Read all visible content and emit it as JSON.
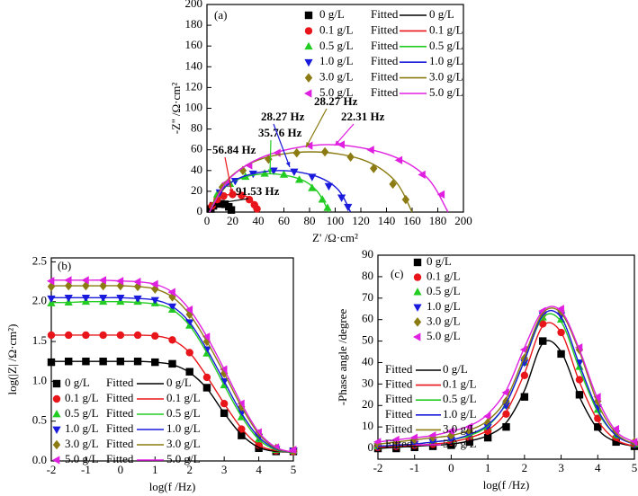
{
  "chart_data": [
    {
      "type": "scatter",
      "panel_label": "(a)",
      "xlabel": "Z' /Ω·cm²",
      "ylabel": "-Z'' /Ω·cm²",
      "fitted_label": "Fitted",
      "xlim": [
        0,
        200
      ],
      "ylim": [
        0,
        200
      ],
      "xticks": [
        0,
        20,
        40,
        60,
        80,
        100,
        120,
        140,
        160,
        180,
        200
      ],
      "yticks": [
        0,
        20,
        40,
        60,
        80,
        100,
        120,
        140,
        160,
        180,
        200
      ],
      "annotations": [
        {
          "text": "91.53 Hz",
          "color": "#000000"
        },
        {
          "text": "56.84 Hz",
          "color": "#e8161b"
        },
        {
          "text": "35.76 Hz",
          "color": "#22cc22"
        },
        {
          "text": "28.27 Hz",
          "color": "#1a1adc"
        },
        {
          "text": "28.27 Hz",
          "color": "#8b7b12"
        },
        {
          "text": "22.31 Hz",
          "color": "#e020e0"
        }
      ],
      "series": [
        {
          "name": "0 g/L",
          "mode": "markers",
          "marker": "square",
          "color": "#000000",
          "x": [
            3,
            5,
            8,
            11,
            14,
            17,
            19
          ],
          "values": [
            3,
            6,
            7.8,
            8,
            7.5,
            5,
            2
          ]
        },
        {
          "name": "0.1 g/L",
          "mode": "markers",
          "marker": "circle",
          "color": "#e8161b",
          "x": [
            4,
            8,
            13,
            20,
            27,
            33,
            37,
            39
          ],
          "values": [
            6,
            12,
            15.5,
            17,
            16,
            12,
            7,
            3
          ]
        },
        {
          "name": "0.5 g/L",
          "mode": "markers",
          "marker": "triangle-up",
          "color": "#22cc22",
          "x": [
            8,
            18,
            30,
            45,
            60,
            72,
            82,
            90,
            94
          ],
          "values": [
            17,
            27,
            34,
            37,
            36,
            31,
            23,
            12,
            4
          ]
        },
        {
          "name": "1.0 g/L",
          "mode": "markers",
          "marker": "triangle-down",
          "color": "#1a1adc",
          "x": [
            10,
            22,
            36,
            52,
            68,
            82,
            95,
            105,
            110
          ],
          "values": [
            19,
            30,
            37,
            40,
            39,
            34,
            25,
            14,
            5
          ]
        },
        {
          "name": "3.0 g/L",
          "mode": "markers",
          "marker": "diamond",
          "color": "#8b7b12",
          "x": [
            12,
            28,
            48,
            70,
            92,
            112,
            130,
            145,
            155
          ],
          "values": [
            24,
            40,
            51,
            57,
            58,
            53,
            42,
            27,
            12
          ]
        },
        {
          "name": "5.0 g/L",
          "mode": "markers",
          "marker": "triangle-left",
          "color": "#e020e0",
          "x": [
            15,
            33,
            55,
            80,
            105,
            128,
            150,
            168,
            183
          ],
          "values": [
            28,
            45,
            57,
            64,
            65,
            60,
            50,
            36,
            17
          ]
        },
        {
          "name": "0 g/L",
          "mode": "line",
          "color": "#000000",
          "x": [
            2,
            4,
            7,
            11,
            15,
            18,
            20
          ],
          "values": [
            0,
            4.5,
            7.3,
            8,
            7,
            4,
            0
          ]
        },
        {
          "name": "0.1 g/L",
          "mode": "line",
          "color": "#e8161b",
          "x": [
            2,
            6,
            12,
            21,
            30,
            36,
            40
          ],
          "values": [
            0,
            10,
            15.5,
            17,
            15.5,
            10,
            0
          ]
        },
        {
          "name": "0.5 g/L",
          "mode": "line",
          "color": "#22cc22",
          "x": [
            2,
            10,
            25,
            48,
            72,
            86,
            95
          ],
          "values": [
            0,
            20,
            32,
            37,
            32,
            20,
            0
          ]
        },
        {
          "name": "1.0 g/L",
          "mode": "line",
          "color": "#1a1adc",
          "x": [
            2,
            12,
            30,
            57,
            84,
            102,
            112
          ],
          "values": [
            0,
            22,
            35,
            40,
            35,
            22,
            0
          ]
        },
        {
          "name": "3.0 g/L",
          "mode": "line",
          "color": "#8b7b12",
          "x": [
            2,
            16,
            42,
            81,
            120,
            146,
            160
          ],
          "values": [
            0,
            31,
            51,
            58,
            51,
            31,
            0
          ]
        },
        {
          "name": "5.0 g/L",
          "mode": "line",
          "color": "#e020e0",
          "x": [
            2,
            19,
            50,
            95,
            140,
            171,
            188
          ],
          "values": [
            0,
            34,
            56,
            65,
            56,
            34,
            0
          ]
        }
      ]
    },
    {
      "type": "scatter",
      "panel_label": "(b)",
      "xlabel": "log(f /Hz)",
      "ylabel": "log(|Z| /Ω·cm²)",
      "fitted_label": "Fitted",
      "xlim": [
        -2,
        5
      ],
      "ylim": [
        0,
        2.55
      ],
      "xticks": [
        -2,
        -1,
        0,
        1,
        2,
        3,
        4,
        5
      ],
      "yticks": [
        {
          "value": 0,
          "label": "0.0"
        },
        0.5,
        {
          "value": 1,
          "label": "1.0"
        },
        1.5,
        {
          "value": 2,
          "label": "2.0"
        },
        2.5
      ],
      "x": [
        -2,
        -1.5,
        -1,
        -0.5,
        0,
        0.5,
        1,
        1.5,
        2,
        2.5,
        3,
        3.5,
        4,
        4.5,
        5
      ],
      "series": [
        {
          "name": "0 g/L",
          "mode": "markers",
          "marker": "square",
          "color": "#000000",
          "values": [
            1.24,
            1.25,
            1.25,
            1.25,
            1.25,
            1.25,
            1.24,
            1.22,
            1.12,
            0.92,
            0.6,
            0.32,
            0.16,
            0.12,
            0.12
          ]
        },
        {
          "name": "0.1 g/L",
          "mode": "markers",
          "marker": "circle",
          "color": "#e8161b",
          "values": [
            1.58,
            1.58,
            1.58,
            1.58,
            1.58,
            1.58,
            1.57,
            1.52,
            1.36,
            1.05,
            0.72,
            0.4,
            0.2,
            0.13,
            0.12
          ]
        },
        {
          "name": "0.5 g/L",
          "mode": "markers",
          "marker": "triangle-up",
          "color": "#22cc22",
          "values": [
            1.98,
            1.99,
            2.0,
            2.0,
            2.0,
            2.0,
            1.98,
            1.9,
            1.7,
            1.35,
            0.95,
            0.55,
            0.27,
            0.14,
            0.13
          ]
        },
        {
          "name": "1.0 g/L",
          "mode": "markers",
          "marker": "triangle-down",
          "color": "#1a1adc",
          "values": [
            2.04,
            2.05,
            2.05,
            2.05,
            2.05,
            2.04,
            2.02,
            1.94,
            1.74,
            1.4,
            1.0,
            0.6,
            0.3,
            0.15,
            0.13
          ]
        },
        {
          "name": "3.0 g/L",
          "mode": "markers",
          "marker": "diamond",
          "color": "#8b7b12",
          "values": [
            2.19,
            2.2,
            2.2,
            2.2,
            2.2,
            2.19,
            2.16,
            2.06,
            1.84,
            1.5,
            1.1,
            0.68,
            0.34,
            0.16,
            0.13
          ]
        },
        {
          "name": "5.0 g/L",
          "mode": "markers",
          "marker": "triangle-left",
          "color": "#e020e0",
          "values": [
            2.26,
            2.27,
            2.27,
            2.27,
            2.26,
            2.25,
            2.22,
            2.12,
            1.9,
            1.56,
            1.15,
            0.72,
            0.36,
            0.17,
            0.14
          ]
        },
        {
          "name": "0 g/L",
          "mode": "line",
          "color": "#000000",
          "values": [
            1.25,
            1.25,
            1.25,
            1.25,
            1.25,
            1.25,
            1.24,
            1.21,
            1.11,
            0.91,
            0.6,
            0.33,
            0.17,
            0.12,
            0.11
          ]
        },
        {
          "name": "0.1 g/L",
          "mode": "line",
          "color": "#e8161b",
          "values": [
            1.58,
            1.58,
            1.58,
            1.58,
            1.58,
            1.58,
            1.57,
            1.52,
            1.36,
            1.06,
            0.72,
            0.41,
            0.2,
            0.13,
            0.11
          ]
        },
        {
          "name": "0.5 g/L",
          "mode": "line",
          "color": "#22cc22",
          "values": [
            1.99,
            1.99,
            2.0,
            2.0,
            2.0,
            1.99,
            1.97,
            1.9,
            1.7,
            1.36,
            0.95,
            0.56,
            0.27,
            0.14,
            0.11
          ]
        },
        {
          "name": "1.0 g/L",
          "mode": "line",
          "color": "#1a1adc",
          "values": [
            2.05,
            2.05,
            2.05,
            2.05,
            2.05,
            2.04,
            2.02,
            1.94,
            1.74,
            1.4,
            1.0,
            0.6,
            0.3,
            0.15,
            0.11
          ]
        },
        {
          "name": "3.0 g/L",
          "mode": "line",
          "color": "#8b7b12",
          "values": [
            2.2,
            2.2,
            2.2,
            2.2,
            2.2,
            2.19,
            2.16,
            2.06,
            1.84,
            1.5,
            1.1,
            0.68,
            0.34,
            0.16,
            0.11
          ]
        },
        {
          "name": "5.0 g/L",
          "mode": "line",
          "color": "#e020e0",
          "values": [
            2.27,
            2.27,
            2.27,
            2.27,
            2.26,
            2.25,
            2.22,
            2.12,
            1.9,
            1.56,
            1.15,
            0.72,
            0.36,
            0.17,
            0.11
          ]
        }
      ]
    },
    {
      "type": "scatter",
      "panel_label": "(c)",
      "xlabel": "log(f /Hz)",
      "ylabel": "-Phase angle /degree",
      "fitted_label": "Fitted",
      "xlim": [
        -2,
        5
      ],
      "ylim": [
        -5,
        90
      ],
      "xticks": [
        -2,
        -1,
        0,
        1,
        2,
        3,
        4,
        5
      ],
      "yticks": [
        0,
        10,
        20,
        30,
        40,
        50,
        60,
        70,
        80,
        90
      ],
      "x": [
        -2,
        -1.5,
        -1,
        -0.5,
        0,
        0.5,
        1,
        1.5,
        2,
        2.5,
        3,
        3.5,
        4,
        4.5,
        5
      ],
      "series": [
        {
          "name": "0 g/L",
          "mode": "markers",
          "marker": "square",
          "color": "#000000",
          "values": [
            0,
            0,
            0.5,
            1,
            1.5,
            3,
            5,
            10,
            24,
            50,
            44,
            25,
            10,
            3,
            1
          ]
        },
        {
          "name": "0.1 g/L",
          "mode": "markers",
          "marker": "circle",
          "color": "#e8161b",
          "values": [
            0.5,
            1,
            1.5,
            2,
            3,
            5,
            8,
            16,
            34,
            58,
            54,
            32,
            14,
            5,
            2
          ]
        },
        {
          "name": "0.5 g/L",
          "mode": "markers",
          "marker": "triangle-up",
          "color": "#22cc22",
          "values": [
            1,
            1.5,
            2,
            3,
            4,
            6,
            10,
            20,
            40,
            61,
            60,
            38,
            18,
            6,
            2
          ]
        },
        {
          "name": "1.0 g/L",
          "mode": "markers",
          "marker": "triangle-down",
          "color": "#1a1adc",
          "values": [
            1,
            1.5,
            2,
            3,
            4,
            6,
            10,
            20,
            40,
            62,
            62,
            40,
            19,
            7,
            2
          ]
        },
        {
          "name": "3.0 g/L",
          "mode": "markers",
          "marker": "diamond",
          "color": "#8b7b12",
          "values": [
            2,
            3,
            4,
            5,
            6,
            8,
            12,
            22,
            42,
            62,
            64,
            46,
            22,
            8,
            3
          ]
        },
        {
          "name": "5.0 g/L",
          "mode": "markers",
          "marker": "triangle-left",
          "color": "#e020e0",
          "values": [
            3,
            4,
            5,
            6,
            8,
            10,
            15,
            26,
            46,
            64,
            65,
            47,
            24,
            9,
            3
          ]
        },
        {
          "name": "0 g/L",
          "mode": "line",
          "color": "#000000",
          "values": [
            0,
            0.5,
            1,
            1.5,
            2,
            3.5,
            6,
            12,
            27,
            49,
            45,
            24,
            9,
            3,
            1
          ]
        },
        {
          "name": "0.1 g/L",
          "mode": "line",
          "color": "#e8161b",
          "values": [
            0.5,
            1,
            1.5,
            2,
            3,
            5,
            8.5,
            17,
            35,
            57,
            54,
            31,
            13,
            4,
            1
          ]
        },
        {
          "name": "0.5 g/L",
          "mode": "line",
          "color": "#22cc22",
          "values": [
            1,
            1.5,
            2,
            3,
            4,
            6,
            10.5,
            21,
            41,
            61,
            59,
            37,
            17,
            6,
            2
          ]
        },
        {
          "name": "1.0 g/L",
          "mode": "line",
          "color": "#1a1adc",
          "values": [
            1,
            1.5,
            2,
            3,
            4,
            6.5,
            11,
            21,
            41,
            62,
            61,
            39,
            18,
            6,
            2
          ]
        },
        {
          "name": "3.0 g/L",
          "mode": "line",
          "color": "#8b7b12",
          "values": [
            2,
            3,
            4,
            5,
            6,
            8.5,
            13,
            23,
            43,
            63,
            63,
            45,
            21,
            7,
            2
          ]
        },
        {
          "name": "5.0 g/L",
          "mode": "line",
          "color": "#e020e0",
          "values": [
            3,
            4,
            5,
            6,
            8,
            10.5,
            16,
            27,
            47,
            64,
            64,
            46,
            23,
            8,
            3
          ]
        }
      ]
    }
  ]
}
